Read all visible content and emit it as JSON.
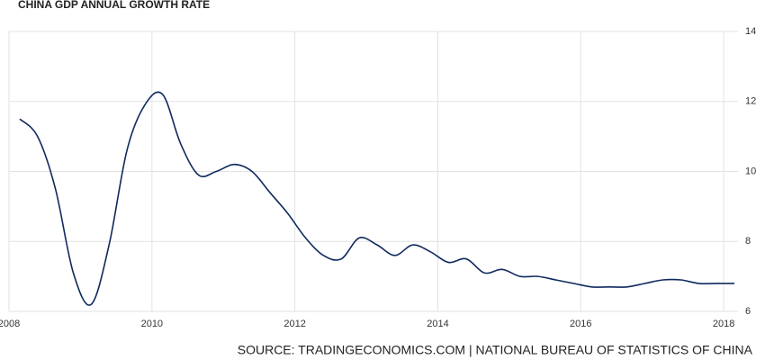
{
  "chart_data": {
    "type": "line",
    "title": "CHINA GDP ANNUAL GROWTH RATE",
    "source": "SOURCE: TRADINGECONOMICS.COM | NATIONAL BUREAU OF STATISTICS OF CHINA",
    "x": [
      2008.15,
      2008.4,
      2008.65,
      2008.9,
      2009.15,
      2009.4,
      2009.65,
      2009.9,
      2010.15,
      2010.4,
      2010.65,
      2010.9,
      2011.15,
      2011.4,
      2011.65,
      2011.9,
      2012.15,
      2012.4,
      2012.65,
      2012.9,
      2013.15,
      2013.4,
      2013.65,
      2013.9,
      2014.15,
      2014.4,
      2014.65,
      2014.9,
      2015.15,
      2015.4,
      2015.65,
      2015.9,
      2016.15,
      2016.4,
      2016.65,
      2016.9,
      2017.15,
      2017.4,
      2017.65,
      2017.9,
      2018.15
    ],
    "series": [
      {
        "name": "GDP Annual Growth Rate",
        "color": "#102a5e",
        "values": [
          11.5,
          11.0,
          9.5,
          7.1,
          6.2,
          7.9,
          10.6,
          11.9,
          12.2,
          10.8,
          9.9,
          10.0,
          10.2,
          10.0,
          9.4,
          8.8,
          8.1,
          7.6,
          7.5,
          8.1,
          7.9,
          7.6,
          7.9,
          7.7,
          7.4,
          7.5,
          7.1,
          7.2,
          7.0,
          7.0,
          6.9,
          6.8,
          6.7,
          6.7,
          6.7,
          6.8,
          6.9,
          6.9,
          6.8,
          6.8,
          6.8
        ]
      }
    ],
    "xlim": [
      2008,
      2018.2
    ],
    "xticks": [
      2008,
      2010,
      2012,
      2014,
      2016,
      2018
    ],
    "ylim": [
      6,
      14
    ],
    "yticks": [
      6,
      8,
      10,
      12,
      14
    ],
    "grid": true,
    "y_axis_side": "right"
  }
}
